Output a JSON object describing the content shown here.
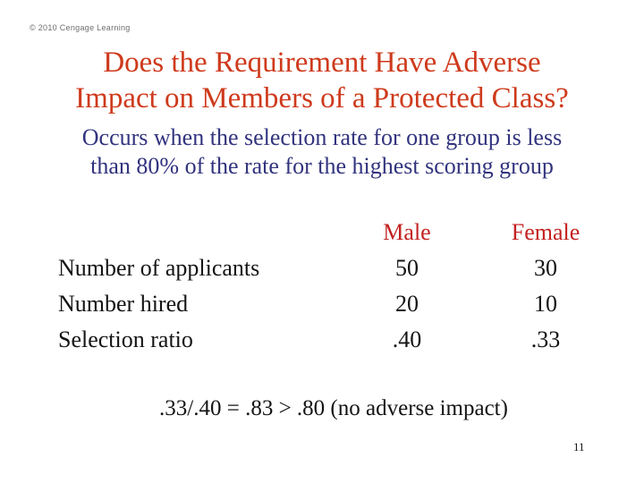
{
  "slide": {
    "copyright": "© 2010 Cengage Learning",
    "title": {
      "line1": "Does the Requirement Have Adverse",
      "line2": "Impact on Members of a Protected Class?"
    },
    "subtitle": {
      "line1": "Occurs when the selection rate for one group is less",
      "line2": "than 80% of the rate for the highest scoring group"
    },
    "table": {
      "columns": {
        "male": "Male",
        "female": "Female"
      },
      "rows": [
        {
          "label": "Number of applicants",
          "male": "50",
          "female": "30"
        },
        {
          "label": "Number hired",
          "male": "20",
          "female": "10"
        },
        {
          "label": "Selection ratio",
          "male": ".40",
          "female": ".33"
        }
      ]
    },
    "formula": ".33/.40 = .83 > .80 (no adverse impact)",
    "page_number": "11"
  },
  "colors": {
    "background": "#FFFFFF",
    "title_red": "#CE3A1C",
    "subtitle_navy": "#32337E",
    "table_header_red": "#C32222",
    "body_text": "#141414",
    "copyright_gray": "#6E6E6E"
  }
}
